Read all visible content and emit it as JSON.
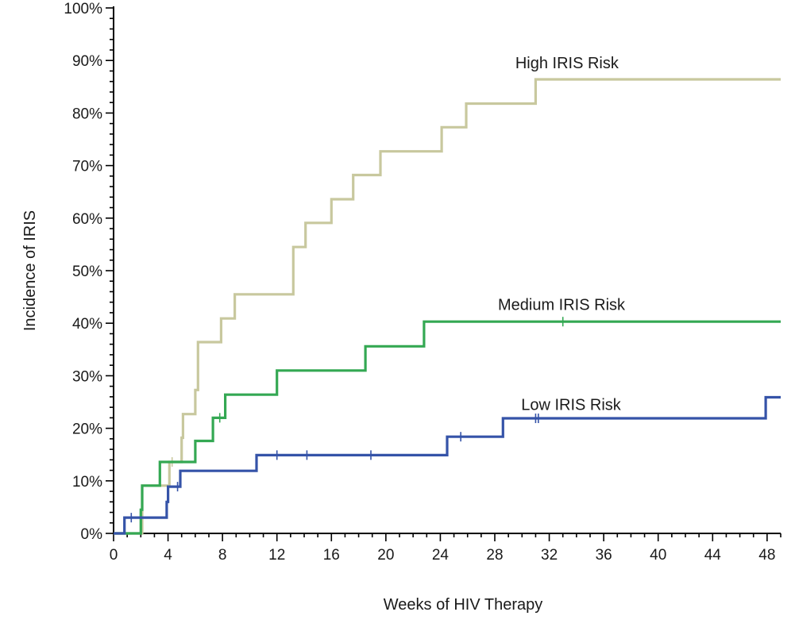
{
  "chart_data": {
    "type": "line",
    "step": true,
    "xlabel": "Weeks of HIV Therapy",
    "ylabel": "Incidence of IRIS",
    "xlim": [
      0,
      49
    ],
    "ylim": [
      0,
      100
    ],
    "x_ticks": [
      0,
      4,
      8,
      12,
      16,
      20,
      24,
      28,
      32,
      36,
      40,
      44,
      48
    ],
    "x_tick_labels": [
      "0",
      "4",
      "8",
      "12",
      "16",
      "20",
      "24",
      "28",
      "32",
      "36",
      "40",
      "44",
      "48"
    ],
    "y_ticks": [
      0,
      10,
      20,
      30,
      40,
      50,
      60,
      70,
      80,
      90,
      100
    ],
    "y_tick_labels": [
      "0%",
      "10%",
      "20%",
      "30%",
      "40%",
      "50%",
      "60%",
      "70%",
      "80%",
      "90%",
      "100%"
    ],
    "grid": false,
    "series": [
      {
        "name": "High IRIS Risk",
        "color": "#c8c89e",
        "label_at": [
          33.3,
          88.5
        ],
        "points": [
          [
            0,
            0
          ],
          [
            2.1,
            0
          ],
          [
            2.1,
            9.1
          ],
          [
            4.1,
            9.1
          ],
          [
            4.1,
            13.6
          ],
          [
            5.0,
            13.6
          ],
          [
            5.0,
            18.2
          ],
          [
            5.1,
            18.2
          ],
          [
            5.1,
            22.7
          ],
          [
            6.0,
            22.7
          ],
          [
            6.0,
            27.3
          ],
          [
            6.2,
            27.3
          ],
          [
            6.2,
            36.4
          ],
          [
            7.9,
            36.4
          ],
          [
            7.9,
            40.9
          ],
          [
            8.9,
            40.9
          ],
          [
            8.9,
            45.5
          ],
          [
            13.2,
            45.5
          ],
          [
            13.2,
            54.5
          ],
          [
            14.1,
            54.5
          ],
          [
            14.1,
            59.1
          ],
          [
            16.0,
            59.1
          ],
          [
            16.0,
            63.6
          ],
          [
            17.6,
            63.6
          ],
          [
            17.6,
            68.2
          ],
          [
            19.6,
            68.2
          ],
          [
            19.6,
            72.7
          ],
          [
            24.1,
            72.7
          ],
          [
            24.1,
            77.3
          ],
          [
            25.9,
            77.3
          ],
          [
            25.9,
            81.8
          ],
          [
            31.0,
            81.8
          ],
          [
            31.0,
            86.4
          ],
          [
            49,
            86.4
          ]
        ],
        "censored": [
          [
            4.3,
            13.6
          ]
        ]
      },
      {
        "name": "Medium IRIS Risk",
        "color": "#34a853",
        "label_at": [
          32.9,
          42.5
        ],
        "points": [
          [
            0,
            0
          ],
          [
            2.0,
            0
          ],
          [
            2.0,
            4.5
          ],
          [
            2.1,
            4.5
          ],
          [
            2.1,
            9.1
          ],
          [
            3.4,
            9.1
          ],
          [
            3.4,
            13.6
          ],
          [
            6.0,
            13.6
          ],
          [
            6.0,
            17.6
          ],
          [
            7.3,
            17.6
          ],
          [
            7.3,
            22.0
          ],
          [
            8.2,
            22.0
          ],
          [
            8.2,
            26.4
          ],
          [
            12.0,
            26.4
          ],
          [
            12.0,
            31.0
          ],
          [
            18.5,
            31.0
          ],
          [
            18.5,
            35.6
          ],
          [
            22.8,
            35.6
          ],
          [
            22.8,
            40.3
          ],
          [
            49,
            40.3
          ]
        ],
        "censored": [
          [
            7.8,
            22.0
          ],
          [
            33.0,
            40.3
          ]
        ]
      },
      {
        "name": "Low IRIS Risk",
        "color": "#3553a8",
        "label_at": [
          33.6,
          23.5
        ],
        "points": [
          [
            0,
            0
          ],
          [
            0.8,
            0
          ],
          [
            0.8,
            3.0
          ],
          [
            3.9,
            3.0
          ],
          [
            3.9,
            6.0
          ],
          [
            4.0,
            6.0
          ],
          [
            4.0,
            8.9
          ],
          [
            4.9,
            8.9
          ],
          [
            4.9,
            11.9
          ],
          [
            10.5,
            11.9
          ],
          [
            10.5,
            14.9
          ],
          [
            24.5,
            14.9
          ],
          [
            24.5,
            18.4
          ],
          [
            28.6,
            18.4
          ],
          [
            28.6,
            21.9
          ],
          [
            47.9,
            21.9
          ],
          [
            47.9,
            25.9
          ],
          [
            49,
            25.9
          ]
        ],
        "censored": [
          [
            1.3,
            3.0
          ],
          [
            4.7,
            8.9
          ],
          [
            12.0,
            14.9
          ],
          [
            14.2,
            14.9
          ],
          [
            18.9,
            14.9
          ],
          [
            25.5,
            18.4
          ],
          [
            31.0,
            21.9
          ],
          [
            31.2,
            21.9
          ]
        ]
      }
    ]
  }
}
